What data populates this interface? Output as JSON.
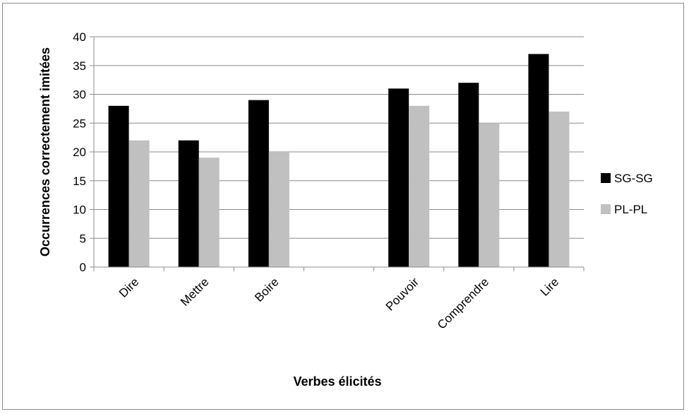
{
  "chart_data": {
    "type": "bar",
    "categories": [
      "Dire",
      "Mettre",
      "Boire",
      "",
      "Pouvoir",
      "Comprendre",
      "Lire"
    ],
    "series": [
      {
        "name": "SG-SG",
        "values": [
          28,
          22,
          29,
          null,
          31,
          32,
          37
        ],
        "color": "#000000"
      },
      {
        "name": "PL-PL",
        "values": [
          22,
          19,
          20,
          null,
          28,
          25,
          27
        ],
        "color": "#c0c0c0"
      }
    ],
    "yticks": [
      "0",
      "5",
      "10",
      "15",
      "20",
      "25",
      "30",
      "35",
      "40"
    ],
    "ylim": [
      0,
      40
    ],
    "xlabel": "Verbes élicités",
    "ylabel": "Occurrences correctement imitées",
    "grid": true,
    "legend_position": "right"
  }
}
